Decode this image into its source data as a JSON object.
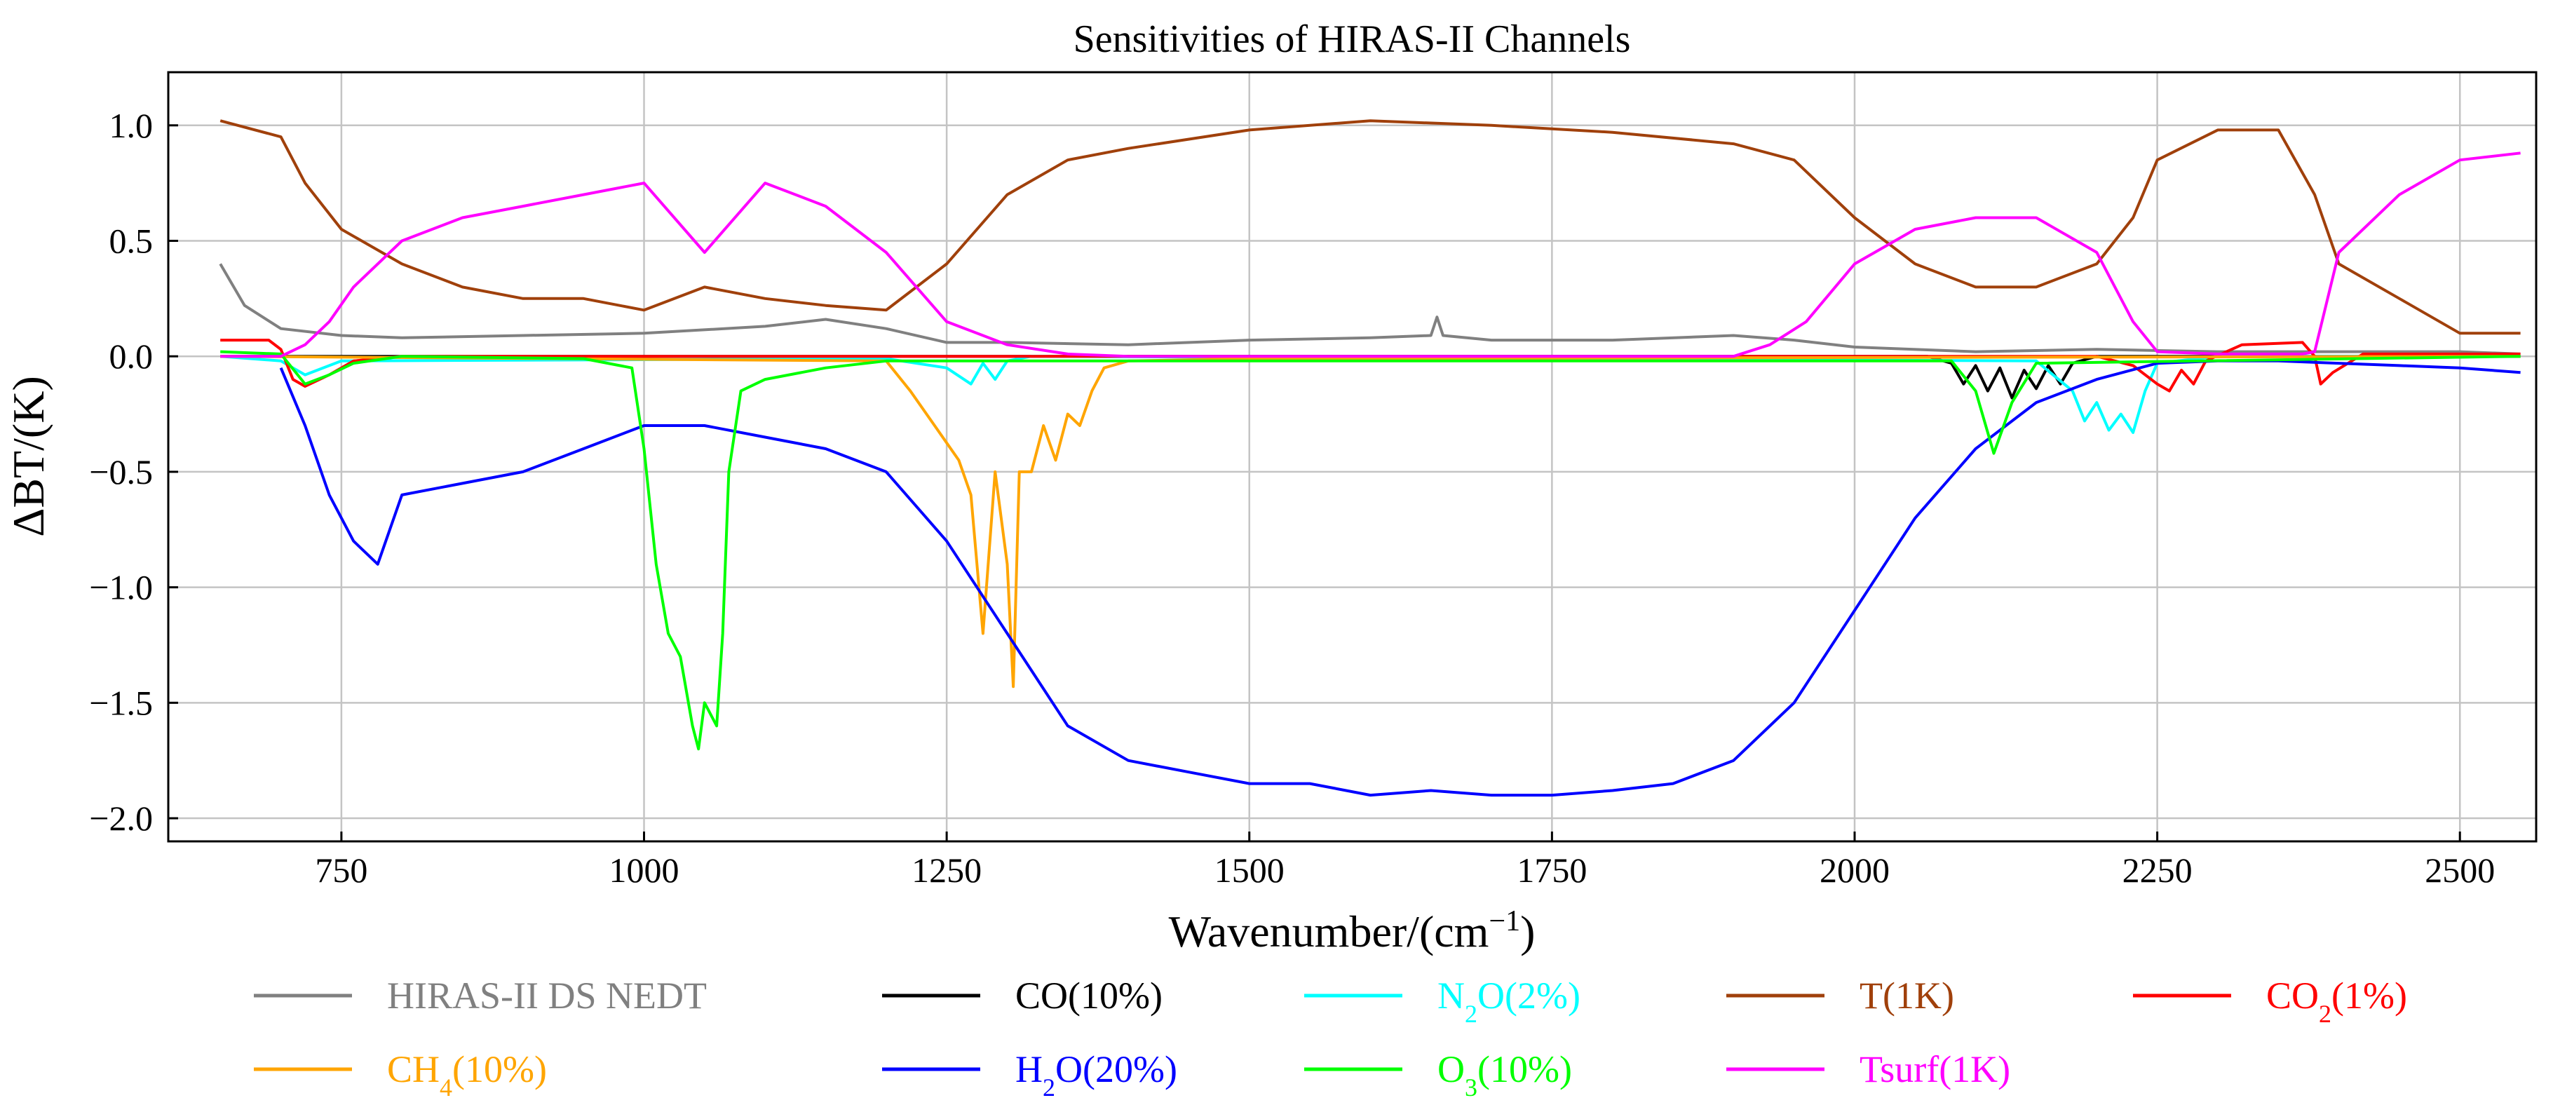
{
  "chart_data": {
    "type": "line",
    "title": "Sensitivities of HIRAS-II Channels",
    "xlabel_main": "Wavenumber/(cm",
    "xlabel_exp": "−1",
    "xlabel_close": ")",
    "ylabel": "ΔBT/(K)",
    "xlim": [
      607,
      2563
    ],
    "ylim": [
      -2.1,
      1.23
    ],
    "xticks": [
      750,
      1000,
      1250,
      1500,
      1750,
      2000,
      2250,
      2500
    ],
    "xtick_labels": [
      "750",
      "1000",
      "1250",
      "1500",
      "1750",
      "2000",
      "2250",
      "2500"
    ],
    "yticks": [
      1.0,
      0.5,
      0.0,
      -0.5,
      -1.0,
      -1.5,
      -2.0
    ],
    "ytick_labels": [
      "1.0",
      "0.5",
      "0.0",
      "−0.5",
      "−1.0",
      "−1.5",
      "−2.0"
    ],
    "grid": true,
    "legend_position": "bottom",
    "series": [
      {
        "key": "nedt",
        "name": "HIRAS-II DS NEDT",
        "label_main": "HIRAS-II DS NEDT",
        "label_sub": "",
        "label_tail": "",
        "color": "#808080",
        "x": [
          650,
          670,
          700,
          750,
          800,
          900,
          1000,
          1100,
          1150,
          1200,
          1250,
          1300,
          1400,
          1500,
          1600,
          1650,
          1655,
          1660,
          1700,
          1800,
          1900,
          1950,
          2000,
          2100,
          2200,
          2300,
          2400,
          2500,
          2550
        ],
        "y": [
          0.4,
          0.22,
          0.12,
          0.09,
          0.08,
          0.09,
          0.1,
          0.13,
          0.16,
          0.12,
          0.06,
          0.06,
          0.05,
          0.07,
          0.08,
          0.09,
          0.17,
          0.09,
          0.07,
          0.07,
          0.09,
          0.07,
          0.04,
          0.02,
          0.03,
          0.02,
          0.02,
          0.02,
          0.01
        ]
      },
      {
        "key": "co",
        "name": "CO(10%)",
        "label_main": "CO(10%)",
        "label_sub": "",
        "label_tail": "",
        "color": "#000000",
        "x": [
          650,
          2060,
          2080,
          2090,
          2100,
          2110,
          2120,
          2130,
          2140,
          2150,
          2160,
          2170,
          2180,
          2200,
          2550
        ],
        "y": [
          0,
          0,
          -0.03,
          -0.12,
          -0.04,
          -0.15,
          -0.05,
          -0.18,
          -0.06,
          -0.14,
          -0.04,
          -0.12,
          -0.03,
          0,
          0
        ]
      },
      {
        "key": "n2o",
        "name": "N2O(2%)",
        "label_main": "N",
        "label_sub": "2",
        "label_tail": "O(2%)",
        "color": "#00ffff",
        "x": [
          650,
          700,
          720,
          750,
          1200,
          1250,
          1270,
          1280,
          1290,
          1300,
          1320,
          2150,
          2180,
          2190,
          2200,
          2210,
          2220,
          2230,
          2240,
          2250,
          2300,
          2550
        ],
        "y": [
          0,
          -0.02,
          -0.08,
          -0.02,
          -0.01,
          -0.05,
          -0.12,
          -0.03,
          -0.1,
          -0.02,
          0,
          -0.02,
          -0.15,
          -0.28,
          -0.2,
          -0.32,
          -0.25,
          -0.33,
          -0.15,
          -0.03,
          0,
          0
        ]
      },
      {
        "key": "t",
        "name": "T(1K)",
        "label_main": "T(1K)",
        "label_sub": "",
        "label_tail": "",
        "color": "#a0400b",
        "x": [
          650,
          700,
          720,
          750,
          800,
          850,
          900,
          950,
          1000,
          1050,
          1100,
          1150,
          1200,
          1250,
          1300,
          1350,
          1400,
          1500,
          1600,
          1700,
          1800,
          1900,
          1950,
          2000,
          2050,
          2100,
          2150,
          2200,
          2230,
          2250,
          2300,
          2350,
          2380,
          2400,
          2450,
          2500,
          2550
        ],
        "y": [
          1.02,
          0.95,
          0.75,
          0.55,
          0.4,
          0.3,
          0.25,
          0.25,
          0.2,
          0.3,
          0.25,
          0.22,
          0.2,
          0.4,
          0.7,
          0.85,
          0.9,
          0.98,
          1.02,
          1.0,
          0.97,
          0.92,
          0.85,
          0.6,
          0.4,
          0.3,
          0.3,
          0.4,
          0.6,
          0.85,
          0.98,
          0.98,
          0.7,
          0.4,
          0.25,
          0.1,
          0.1
        ]
      },
      {
        "key": "co2",
        "name": "CO2(1%)",
        "label_main": "CO",
        "label_sub": "2",
        "label_tail": "(1%)",
        "color": "#ff0000",
        "x": [
          650,
          690,
          700,
          710,
          720,
          740,
          760,
          800,
          2200,
          2230,
          2250,
          2260,
          2270,
          2280,
          2290,
          2320,
          2370,
          2380,
          2385,
          2395,
          2420,
          2550
        ],
        "y": [
          0.07,
          0.07,
          0.03,
          -0.1,
          -0.13,
          -0.08,
          -0.02,
          0,
          0,
          -0.04,
          -0.12,
          -0.15,
          -0.06,
          -0.12,
          -0.02,
          0.05,
          0.06,
          0.0,
          -0.12,
          -0.07,
          0.01,
          0.01
        ]
      },
      {
        "key": "ch4",
        "name": "CH4(10%)",
        "label_main": "CH",
        "label_sub": "4",
        "label_tail": "(10%)",
        "color": "#ffa500",
        "x": [
          650,
          1200,
          1220,
          1240,
          1260,
          1270,
          1280,
          1290,
          1300,
          1305,
          1310,
          1320,
          1330,
          1340,
          1350,
          1360,
          1370,
          1380,
          1400,
          1500,
          2550
        ],
        "y": [
          0,
          -0.02,
          -0.15,
          -0.3,
          -0.45,
          -0.6,
          -1.2,
          -0.5,
          -0.9,
          -1.43,
          -0.5,
          -0.5,
          -0.3,
          -0.45,
          -0.25,
          -0.3,
          -0.15,
          -0.05,
          -0.02,
          -0.01,
          0
        ]
      },
      {
        "key": "h2o",
        "name": "H2O(20%)",
        "label_main": "H",
        "label_sub": "2",
        "label_tail": "O(20%)",
        "color": "#0000ff",
        "x": [
          700,
          720,
          740,
          760,
          780,
          800,
          850,
          900,
          950,
          1000,
          1050,
          1100,
          1150,
          1200,
          1250,
          1300,
          1350,
          1400,
          1450,
          1500,
          1550,
          1600,
          1650,
          1700,
          1750,
          1800,
          1850,
          1900,
          1950,
          2000,
          2050,
          2100,
          2150,
          2200,
          2250,
          2300,
          2350,
          2400,
          2450,
          2500,
          2550
        ],
        "y": [
          -0.05,
          -0.3,
          -0.6,
          -0.8,
          -0.9,
          -0.6,
          -0.55,
          -0.5,
          -0.4,
          -0.3,
          -0.3,
          -0.35,
          -0.4,
          -0.5,
          -0.8,
          -1.2,
          -1.6,
          -1.75,
          -1.8,
          -1.85,
          -1.85,
          -1.9,
          -1.88,
          -1.9,
          -1.9,
          -1.88,
          -1.85,
          -1.75,
          -1.5,
          -1.1,
          -0.7,
          -0.4,
          -0.2,
          -0.1,
          -0.03,
          -0.02,
          -0.02,
          -0.03,
          -0.04,
          -0.05,
          -0.07
        ]
      },
      {
        "key": "o3",
        "name": "O3(10%)",
        "label_main": "O",
        "label_sub": "3",
        "label_tail": "(10%)",
        "color": "#00ff00",
        "x": [
          650,
          700,
          720,
          740,
          760,
          800,
          950,
          990,
          1000,
          1010,
          1020,
          1030,
          1040,
          1045,
          1050,
          1060,
          1065,
          1070,
          1080,
          1100,
          1150,
          1200,
          2080,
          2100,
          2115,
          2130,
          2150,
          2550
        ],
        "y": [
          0.02,
          0.01,
          -0.12,
          -0.08,
          -0.03,
          0,
          -0.01,
          -0.05,
          -0.4,
          -0.9,
          -1.2,
          -1.3,
          -1.6,
          -1.7,
          -1.5,
          -1.6,
          -1.2,
          -0.5,
          -0.15,
          -0.1,
          -0.05,
          -0.02,
          -0.02,
          -0.15,
          -0.42,
          -0.2,
          -0.03,
          0
        ]
      },
      {
        "key": "tsurf",
        "name": "Tsurf(1K)",
        "label_main": "Tsurf(1K)",
        "label_sub": "",
        "label_tail": "",
        "color": "#ff00ff",
        "x": [
          650,
          700,
          720,
          740,
          760,
          800,
          850,
          900,
          950,
          1000,
          1050,
          1100,
          1150,
          1200,
          1250,
          1300,
          1350,
          1400,
          1800,
          1900,
          1930,
          1960,
          2000,
          2050,
          2100,
          2150,
          2200,
          2230,
          2250,
          2300,
          2370,
          2380,
          2400,
          2450,
          2500,
          2550
        ],
        "y": [
          0,
          0,
          0.05,
          0.15,
          0.3,
          0.5,
          0.6,
          0.65,
          0.7,
          0.75,
          0.45,
          0.75,
          0.65,
          0.45,
          0.15,
          0.05,
          0.01,
          0,
          0,
          0,
          0.05,
          0.15,
          0.4,
          0.55,
          0.6,
          0.6,
          0.45,
          0.15,
          0.02,
          0.01,
          0.01,
          0.02,
          0.45,
          0.7,
          0.85,
          0.88
        ]
      }
    ]
  }
}
